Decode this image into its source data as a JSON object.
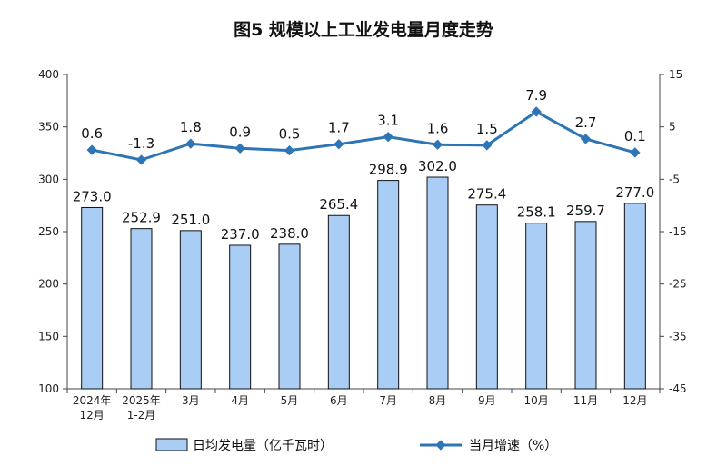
{
  "title": "图5 规模以上工业发电量月度走势",
  "chart_data": {
    "type": "bar",
    "categories": [
      [
        "2024年",
        "12月"
      ],
      [
        "2025年",
        "1-2月"
      ],
      [
        "3月"
      ],
      [
        "4月"
      ],
      [
        "5月"
      ],
      [
        "6月"
      ],
      [
        "7月"
      ],
      [
        "8月"
      ],
      [
        "9月"
      ],
      [
        "10月"
      ],
      [
        "11月"
      ],
      [
        "12月"
      ]
    ],
    "series": [
      {
        "name": "日均发电量（亿千瓦时）",
        "type": "bar",
        "axis": "left",
        "color": "#a9cdf5",
        "values": [
          273.0,
          252.9,
          251.0,
          237.0,
          238.0,
          265.4,
          298.9,
          302.0,
          275.4,
          258.1,
          259.7,
          277.0
        ],
        "labels": [
          "273.0",
          "252.9",
          "251.0",
          "237.0",
          "238.0",
          "265.4",
          "298.9",
          "302.0",
          "275.4",
          "258.1",
          "259.7",
          "277.0"
        ]
      },
      {
        "name": "当月增速（%）",
        "type": "line",
        "axis": "right",
        "color": "#2e75b6",
        "values": [
          0.6,
          -1.3,
          1.8,
          0.9,
          0.5,
          1.7,
          3.1,
          1.6,
          1.5,
          7.9,
          2.7,
          0.1
        ],
        "labels": [
          "0.6",
          "-1.3",
          "1.8",
          "0.9",
          "0.5",
          "1.7",
          "3.1",
          "1.6",
          "1.5",
          "7.9",
          "2.7",
          "0.1"
        ]
      }
    ],
    "yleft": {
      "min": 100,
      "max": 400,
      "ticks": [
        "100",
        "150",
        "200",
        "250",
        "300",
        "350",
        "400"
      ]
    },
    "yright": {
      "min": -45,
      "max": 15,
      "ticks": [
        "-45",
        "-35",
        "-25",
        "-15",
        "-5",
        "5",
        "15"
      ]
    },
    "legend": "bottom",
    "grid": false
  }
}
